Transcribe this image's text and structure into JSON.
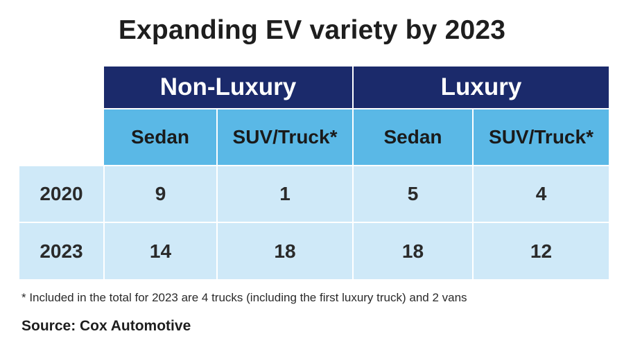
{
  "title": "Expanding EV variety by 2023",
  "chart_data": {
    "type": "table",
    "title": "Expanding EV variety by 2023",
    "column_groups": [
      {
        "name": "Non-Luxury",
        "columns": [
          "Sedan",
          "SUV/Truck*"
        ]
      },
      {
        "name": "Luxury",
        "columns": [
          "Sedan",
          "SUV/Truck*"
        ]
      }
    ],
    "rows": [
      {
        "label": "2020",
        "values": [
          9,
          1,
          5,
          4
        ]
      },
      {
        "label": "2023",
        "values": [
          14,
          18,
          18,
          12
        ]
      }
    ],
    "footnote": "* Included in the total for 2023 are 4 trucks (including the first luxury truck) and 2 vans",
    "source": "Source: Cox Automotive"
  },
  "colors": {
    "header_dark": "#1b2a6b",
    "header_light": "#5ab8e6",
    "cell_bg": "#cfe9f8"
  }
}
